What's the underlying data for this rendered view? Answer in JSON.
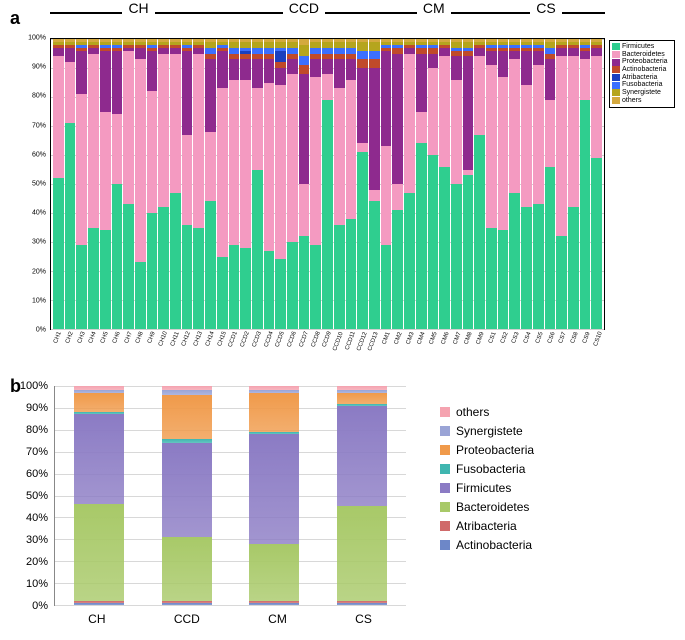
{
  "panel_a": {
    "label": "a",
    "type": "stacked-bar",
    "ylim": [
      0,
      100
    ],
    "ytick_step": 10,
    "ytick_suffix": "%",
    "groups": [
      {
        "name": "CH",
        "span": 15
      },
      {
        "name": "CCD",
        "span": 13
      },
      {
        "name": "CM",
        "span": 9
      },
      {
        "name": "CS",
        "span": 10
      }
    ],
    "taxa_order": [
      "Firmicutes",
      "Bacteroidetes",
      "Proteobacteria",
      "Actinobacteria",
      "Atribacteria",
      "Fusobacteria",
      "Synergistete",
      "others"
    ],
    "colors": {
      "Firmicutes": "#2fce8f",
      "Bacteroidetes": "#f49ac1",
      "Proteobacteria": "#8e2a8e",
      "Actinobacteria": "#c04a2a",
      "Atribacteria": "#1a3fbf",
      "Fusobacteria": "#3b6fff",
      "Synergistete": "#b5a51d",
      "others": "#d4a93f"
    },
    "samples": [
      {
        "id": "CH1",
        "v": {
          "Firmicutes": 52,
          "Bacteroidetes": 42,
          "Proteobacteria": 3,
          "Actinobacteria": 1,
          "Atribacteria": 0,
          "Fusobacteria": 0,
          "Synergistete": 1,
          "others": 1
        }
      },
      {
        "id": "CH2",
        "v": {
          "Firmicutes": 71,
          "Bacteroidetes": 21,
          "Proteobacteria": 5,
          "Actinobacteria": 1,
          "Atribacteria": 0,
          "Fusobacteria": 0,
          "Synergistete": 1,
          "others": 1
        }
      },
      {
        "id": "CH3",
        "v": {
          "Firmicutes": 29,
          "Bacteroidetes": 52,
          "Proteobacteria": 15,
          "Actinobacteria": 1,
          "Atribacteria": 0,
          "Fusobacteria": 1,
          "Synergistete": 1,
          "others": 1
        }
      },
      {
        "id": "CH4",
        "v": {
          "Firmicutes": 35,
          "Bacteroidetes": 60,
          "Proteobacteria": 2,
          "Actinobacteria": 1,
          "Atribacteria": 0,
          "Fusobacteria": 0,
          "Synergistete": 1,
          "others": 1
        }
      },
      {
        "id": "CH5",
        "v": {
          "Firmicutes": 34,
          "Bacteroidetes": 41,
          "Proteobacteria": 21,
          "Actinobacteria": 1,
          "Atribacteria": 0,
          "Fusobacteria": 1,
          "Synergistete": 1,
          "others": 1
        }
      },
      {
        "id": "CH6",
        "v": {
          "Firmicutes": 50,
          "Bacteroidetes": 24,
          "Proteobacteria": 22,
          "Actinobacteria": 1,
          "Atribacteria": 0,
          "Fusobacteria": 1,
          "Synergistete": 1,
          "others": 1
        }
      },
      {
        "id": "CH7",
        "v": {
          "Firmicutes": 43,
          "Bacteroidetes": 53,
          "Proteobacteria": 1,
          "Actinobacteria": 1,
          "Atribacteria": 0,
          "Fusobacteria": 0,
          "Synergistete": 1,
          "others": 1
        }
      },
      {
        "id": "CH8",
        "v": {
          "Firmicutes": 23,
          "Bacteroidetes": 70,
          "Proteobacteria": 4,
          "Actinobacteria": 1,
          "Atribacteria": 0,
          "Fusobacteria": 0,
          "Synergistete": 1,
          "others": 1
        }
      },
      {
        "id": "CH9",
        "v": {
          "Firmicutes": 40,
          "Bacteroidetes": 42,
          "Proteobacteria": 14,
          "Actinobacteria": 1,
          "Atribacteria": 0,
          "Fusobacteria": 1,
          "Synergistete": 1,
          "others": 1
        }
      },
      {
        "id": "CH10",
        "v": {
          "Firmicutes": 42,
          "Bacteroidetes": 53,
          "Proteobacteria": 2,
          "Actinobacteria": 1,
          "Atribacteria": 0,
          "Fusobacteria": 0,
          "Synergistete": 1,
          "others": 1
        }
      },
      {
        "id": "CH11",
        "v": {
          "Firmicutes": 47,
          "Bacteroidetes": 48,
          "Proteobacteria": 2,
          "Actinobacteria": 1,
          "Atribacteria": 0,
          "Fusobacteria": 0,
          "Synergistete": 1,
          "others": 1
        }
      },
      {
        "id": "CH12",
        "v": {
          "Firmicutes": 36,
          "Bacteroidetes": 31,
          "Proteobacteria": 29,
          "Actinobacteria": 1,
          "Atribacteria": 0,
          "Fusobacteria": 1,
          "Synergistete": 1,
          "others": 1
        }
      },
      {
        "id": "CH13",
        "v": {
          "Firmicutes": 35,
          "Bacteroidetes": 60,
          "Proteobacteria": 2,
          "Actinobacteria": 1,
          "Atribacteria": 0,
          "Fusobacteria": 0,
          "Synergistete": 1,
          "others": 1
        }
      },
      {
        "id": "CH14",
        "v": {
          "Firmicutes": 44,
          "Bacteroidetes": 24,
          "Proteobacteria": 25,
          "Actinobacteria": 2,
          "Atribacteria": 0,
          "Fusobacteria": 2,
          "Synergistete": 2,
          "others": 1
        }
      },
      {
        "id": "CH15",
        "v": {
          "Firmicutes": 25,
          "Bacteroidetes": 58,
          "Proteobacteria": 13,
          "Actinobacteria": 1,
          "Atribacteria": 0,
          "Fusobacteria": 1,
          "Synergistete": 1,
          "others": 1
        }
      },
      {
        "id": "CCD1",
        "v": {
          "Firmicutes": 29,
          "Bacteroidetes": 57,
          "Proteobacteria": 7,
          "Actinobacteria": 2,
          "Atribacteria": 0,
          "Fusobacteria": 2,
          "Synergistete": 2,
          "others": 1
        }
      },
      {
        "id": "CCD2",
        "v": {
          "Firmicutes": 28,
          "Bacteroidetes": 58,
          "Proteobacteria": 7,
          "Actinobacteria": 2,
          "Atribacteria": 1,
          "Fusobacteria": 1,
          "Synergistete": 2,
          "others": 1
        }
      },
      {
        "id": "CCD3",
        "v": {
          "Firmicutes": 55,
          "Bacteroidetes": 28,
          "Proteobacteria": 10,
          "Actinobacteria": 2,
          "Atribacteria": 0,
          "Fusobacteria": 2,
          "Synergistete": 2,
          "others": 1
        }
      },
      {
        "id": "CCD4",
        "v": {
          "Firmicutes": 27,
          "Bacteroidetes": 58,
          "Proteobacteria": 8,
          "Actinobacteria": 2,
          "Atribacteria": 0,
          "Fusobacteria": 2,
          "Synergistete": 2,
          "others": 1
        }
      },
      {
        "id": "CCD5",
        "v": {
          "Firmicutes": 24,
          "Bacteroidetes": 60,
          "Proteobacteria": 6,
          "Actinobacteria": 2,
          "Atribacteria": 4,
          "Fusobacteria": 1,
          "Synergistete": 2,
          "others": 1
        }
      },
      {
        "id": "CCD6",
        "v": {
          "Firmicutes": 30,
          "Bacteroidetes": 58,
          "Proteobacteria": 5,
          "Actinobacteria": 2,
          "Atribacteria": 0,
          "Fusobacteria": 2,
          "Synergistete": 2,
          "others": 1
        }
      },
      {
        "id": "CCD7",
        "v": {
          "Firmicutes": 32,
          "Bacteroidetes": 18,
          "Proteobacteria": 38,
          "Actinobacteria": 3,
          "Atribacteria": 0,
          "Fusobacteria": 3,
          "Synergistete": 4,
          "others": 2
        }
      },
      {
        "id": "CCD8",
        "v": {
          "Firmicutes": 29,
          "Bacteroidetes": 58,
          "Proteobacteria": 6,
          "Actinobacteria": 2,
          "Atribacteria": 0,
          "Fusobacteria": 2,
          "Synergistete": 2,
          "others": 1
        }
      },
      {
        "id": "CCD9",
        "v": {
          "Firmicutes": 79,
          "Bacteroidetes": 9,
          "Proteobacteria": 5,
          "Actinobacteria": 2,
          "Atribacteria": 0,
          "Fusobacteria": 2,
          "Synergistete": 2,
          "others": 1
        }
      },
      {
        "id": "CCD10",
        "v": {
          "Firmicutes": 36,
          "Bacteroidetes": 47,
          "Proteobacteria": 10,
          "Actinobacteria": 2,
          "Atribacteria": 0,
          "Fusobacteria": 2,
          "Synergistete": 2,
          "others": 1
        }
      },
      {
        "id": "CCD11",
        "v": {
          "Firmicutes": 38,
          "Bacteroidetes": 48,
          "Proteobacteria": 7,
          "Actinobacteria": 2,
          "Atribacteria": 0,
          "Fusobacteria": 2,
          "Synergistete": 2,
          "others": 1
        }
      },
      {
        "id": "CCD12",
        "v": {
          "Firmicutes": 61,
          "Bacteroidetes": 3,
          "Proteobacteria": 26,
          "Actinobacteria": 3,
          "Atribacteria": 0,
          "Fusobacteria": 3,
          "Synergistete": 3,
          "others": 1
        }
      },
      {
        "id": "CCD13",
        "v": {
          "Firmicutes": 44,
          "Bacteroidetes": 4,
          "Proteobacteria": 42,
          "Actinobacteria": 3,
          "Atribacteria": 0,
          "Fusobacteria": 3,
          "Synergistete": 3,
          "others": 1
        }
      },
      {
        "id": "CM1",
        "v": {
          "Firmicutes": 29,
          "Bacteroidetes": 34,
          "Proteobacteria": 33,
          "Actinobacteria": 1,
          "Atribacteria": 0,
          "Fusobacteria": 1,
          "Synergistete": 1,
          "others": 1
        }
      },
      {
        "id": "CM2",
        "v": {
          "Firmicutes": 41,
          "Bacteroidetes": 9,
          "Proteobacteria": 45,
          "Actinobacteria": 2,
          "Atribacteria": 0,
          "Fusobacteria": 1,
          "Synergistete": 1,
          "others": 1
        }
      },
      {
        "id": "CM3",
        "v": {
          "Firmicutes": 47,
          "Bacteroidetes": 48,
          "Proteobacteria": 2,
          "Actinobacteria": 1,
          "Atribacteria": 0,
          "Fusobacteria": 0,
          "Synergistete": 1,
          "others": 1
        }
      },
      {
        "id": "CM4",
        "v": {
          "Firmicutes": 64,
          "Bacteroidetes": 11,
          "Proteobacteria": 20,
          "Actinobacteria": 2,
          "Atribacteria": 0,
          "Fusobacteria": 1,
          "Synergistete": 1,
          "others": 1
        }
      },
      {
        "id": "CM5",
        "v": {
          "Firmicutes": 60,
          "Bacteroidetes": 30,
          "Proteobacteria": 5,
          "Actinobacteria": 2,
          "Atribacteria": 0,
          "Fusobacteria": 1,
          "Synergistete": 1,
          "others": 1
        }
      },
      {
        "id": "CM6",
        "v": {
          "Firmicutes": 56,
          "Bacteroidetes": 38,
          "Proteobacteria": 3,
          "Actinobacteria": 1,
          "Atribacteria": 0,
          "Fusobacteria": 0,
          "Synergistete": 1,
          "others": 1
        }
      },
      {
        "id": "CM7",
        "v": {
          "Firmicutes": 50,
          "Bacteroidetes": 36,
          "Proteobacteria": 8,
          "Actinobacteria": 2,
          "Atribacteria": 0,
          "Fusobacteria": 1,
          "Synergistete": 2,
          "others": 1
        }
      },
      {
        "id": "CM8",
        "v": {
          "Firmicutes": 53,
          "Bacteroidetes": 2,
          "Proteobacteria": 39,
          "Actinobacteria": 2,
          "Atribacteria": 0,
          "Fusobacteria": 1,
          "Synergistete": 2,
          "others": 1
        }
      },
      {
        "id": "CM9",
        "v": {
          "Firmicutes": 67,
          "Bacteroidetes": 27,
          "Proteobacteria": 3,
          "Actinobacteria": 1,
          "Atribacteria": 0,
          "Fusobacteria": 0,
          "Synergistete": 1,
          "others": 1
        }
      },
      {
        "id": "CS1",
        "v": {
          "Firmicutes": 35,
          "Bacteroidetes": 56,
          "Proteobacteria": 5,
          "Actinobacteria": 1,
          "Atribacteria": 0,
          "Fusobacteria": 1,
          "Synergistete": 1,
          "others": 1
        }
      },
      {
        "id": "CS2",
        "v": {
          "Firmicutes": 34,
          "Bacteroidetes": 53,
          "Proteobacteria": 9,
          "Actinobacteria": 1,
          "Atribacteria": 0,
          "Fusobacteria": 1,
          "Synergistete": 1,
          "others": 1
        }
      },
      {
        "id": "CS3",
        "v": {
          "Firmicutes": 47,
          "Bacteroidetes": 46,
          "Proteobacteria": 3,
          "Actinobacteria": 1,
          "Atribacteria": 0,
          "Fusobacteria": 1,
          "Synergistete": 1,
          "others": 1
        }
      },
      {
        "id": "CS4",
        "v": {
          "Firmicutes": 42,
          "Bacteroidetes": 42,
          "Proteobacteria": 12,
          "Actinobacteria": 1,
          "Atribacteria": 0,
          "Fusobacteria": 1,
          "Synergistete": 1,
          "others": 1
        }
      },
      {
        "id": "CS5",
        "v": {
          "Firmicutes": 43,
          "Bacteroidetes": 48,
          "Proteobacteria": 5,
          "Actinobacteria": 1,
          "Atribacteria": 0,
          "Fusobacteria": 1,
          "Synergistete": 1,
          "others": 1
        }
      },
      {
        "id": "CS6",
        "v": {
          "Firmicutes": 56,
          "Bacteroidetes": 23,
          "Proteobacteria": 14,
          "Actinobacteria": 2,
          "Atribacteria": 0,
          "Fusobacteria": 2,
          "Synergistete": 2,
          "others": 1
        }
      },
      {
        "id": "CS7",
        "v": {
          "Firmicutes": 32,
          "Bacteroidetes": 62,
          "Proteobacteria": 3,
          "Actinobacteria": 1,
          "Atribacteria": 0,
          "Fusobacteria": 0,
          "Synergistete": 1,
          "others": 1
        }
      },
      {
        "id": "CS8",
        "v": {
          "Firmicutes": 42,
          "Bacteroidetes": 52,
          "Proteobacteria": 3,
          "Actinobacteria": 1,
          "Atribacteria": 0,
          "Fusobacteria": 0,
          "Synergistete": 1,
          "others": 1
        }
      },
      {
        "id": "CS9",
        "v": {
          "Firmicutes": 79,
          "Bacteroidetes": 14,
          "Proteobacteria": 3,
          "Actinobacteria": 1,
          "Atribacteria": 0,
          "Fusobacteria": 1,
          "Synergistete": 1,
          "others": 1
        }
      },
      {
        "id": "CS10",
        "v": {
          "Firmicutes": 59,
          "Bacteroidetes": 35,
          "Proteobacteria": 3,
          "Actinobacteria": 1,
          "Atribacteria": 0,
          "Fusobacteria": 0,
          "Synergistete": 1,
          "others": 1
        }
      }
    ]
  },
  "panel_b": {
    "label": "b",
    "type": "stacked-bar",
    "ylim": [
      0,
      100
    ],
    "ytick_step": 10,
    "ytick_suffix": "%",
    "taxa_order": [
      "Actinobacteria",
      "Atribacteria",
      "Bacteroidetes",
      "Firmicutes",
      "Fusobacteria",
      "Proteobacteria",
      "Synergistete",
      "others"
    ],
    "legend_order": [
      "others",
      "Synergistete",
      "Proteobacteria",
      "Fusobacteria",
      "Firmicutes",
      "Bacteroidetes",
      "Atribacteria",
      "Actinobacteria"
    ],
    "colors": {
      "others": "#f5a3b0",
      "Synergistete": "#9aa4d6",
      "Proteobacteria": "#f09a4a",
      "Fusobacteria": "#3fb6b0",
      "Firmicutes": "#8b7bc4",
      "Bacteroidetes": "#a8c968",
      "Atribacteria": "#d06a6a",
      "Actinobacteria": "#6d87c8"
    },
    "bars": [
      {
        "id": "CH",
        "v": {
          "Actinobacteria": 1,
          "Atribacteria": 1,
          "Bacteroidetes": 44,
          "Firmicutes": 41,
          "Fusobacteria": 1,
          "Proteobacteria": 9,
          "Synergistete": 1,
          "others": 2
        }
      },
      {
        "id": "CCD",
        "v": {
          "Actinobacteria": 1,
          "Atribacteria": 1,
          "Bacteroidetes": 29,
          "Firmicutes": 43,
          "Fusobacteria": 2,
          "Proteobacteria": 20,
          "Synergistete": 2,
          "others": 2
        }
      },
      {
        "id": "CM",
        "v": {
          "Actinobacteria": 1,
          "Atribacteria": 1,
          "Bacteroidetes": 26,
          "Firmicutes": 50,
          "Fusobacteria": 1,
          "Proteobacteria": 18,
          "Synergistete": 1,
          "others": 2
        }
      },
      {
        "id": "CS",
        "v": {
          "Actinobacteria": 1,
          "Atribacteria": 1,
          "Bacteroidetes": 43,
          "Firmicutes": 46,
          "Fusobacteria": 1,
          "Proteobacteria": 5,
          "Synergistete": 1,
          "others": 2
        }
      }
    ]
  }
}
